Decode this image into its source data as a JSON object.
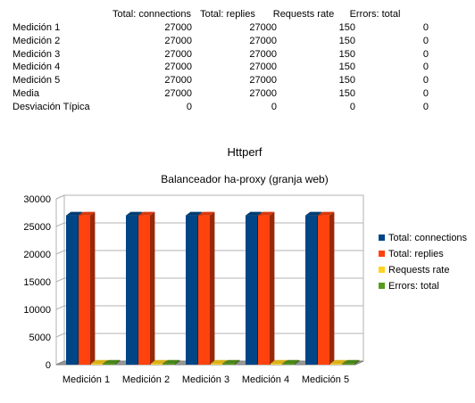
{
  "table": {
    "headers": [
      "Total: connections",
      "Total: replies",
      "Requests rate",
      "Errors: total"
    ],
    "rows": [
      {
        "label": "Medición 1",
        "values": [
          "27000",
          "27000",
          "150",
          "0"
        ]
      },
      {
        "label": "Medición 2",
        "values": [
          "27000",
          "27000",
          "150",
          "0"
        ]
      },
      {
        "label": "Medición 3",
        "values": [
          "27000",
          "27000",
          "150",
          "0"
        ]
      },
      {
        "label": "Medición 4",
        "values": [
          "27000",
          "27000",
          "150",
          "0"
        ]
      },
      {
        "label": "Medición 5",
        "values": [
          "27000",
          "27000",
          "150",
          "0"
        ]
      },
      {
        "label": "Media",
        "values": [
          "27000",
          "27000",
          "150",
          "0"
        ]
      },
      {
        "label": "Desviación Típica",
        "values": [
          "0",
          "0",
          "0",
          "0"
        ]
      }
    ]
  },
  "chart_data": {
    "type": "bar",
    "title": "Httperf",
    "subtitle": "Balanceador ha-proxy (granja web)",
    "xlabel": "",
    "ylabel": "",
    "categories": [
      "Medición 1",
      "Medición 2",
      "Medición 3",
      "Medición 4",
      "Medición 5"
    ],
    "series": [
      {
        "name": "Total: connections",
        "values": [
          27000,
          27000,
          27000,
          27000,
          27000
        ],
        "color": "#004586"
      },
      {
        "name": "Total: replies",
        "values": [
          27000,
          27000,
          27000,
          27000,
          27000
        ],
        "color": "#ff420e"
      },
      {
        "name": "Requests rate",
        "values": [
          150,
          150,
          150,
          150,
          150
        ],
        "color": "#ffd320"
      },
      {
        "name": "Errors: total",
        "values": [
          0,
          0,
          0,
          0,
          0
        ],
        "color": "#579d1c"
      }
    ],
    "ylim": [
      0,
      30000
    ],
    "yticks": [
      0,
      5000,
      10000,
      15000,
      20000,
      25000,
      30000
    ],
    "grid": true,
    "legend": "right",
    "style": "3d"
  }
}
